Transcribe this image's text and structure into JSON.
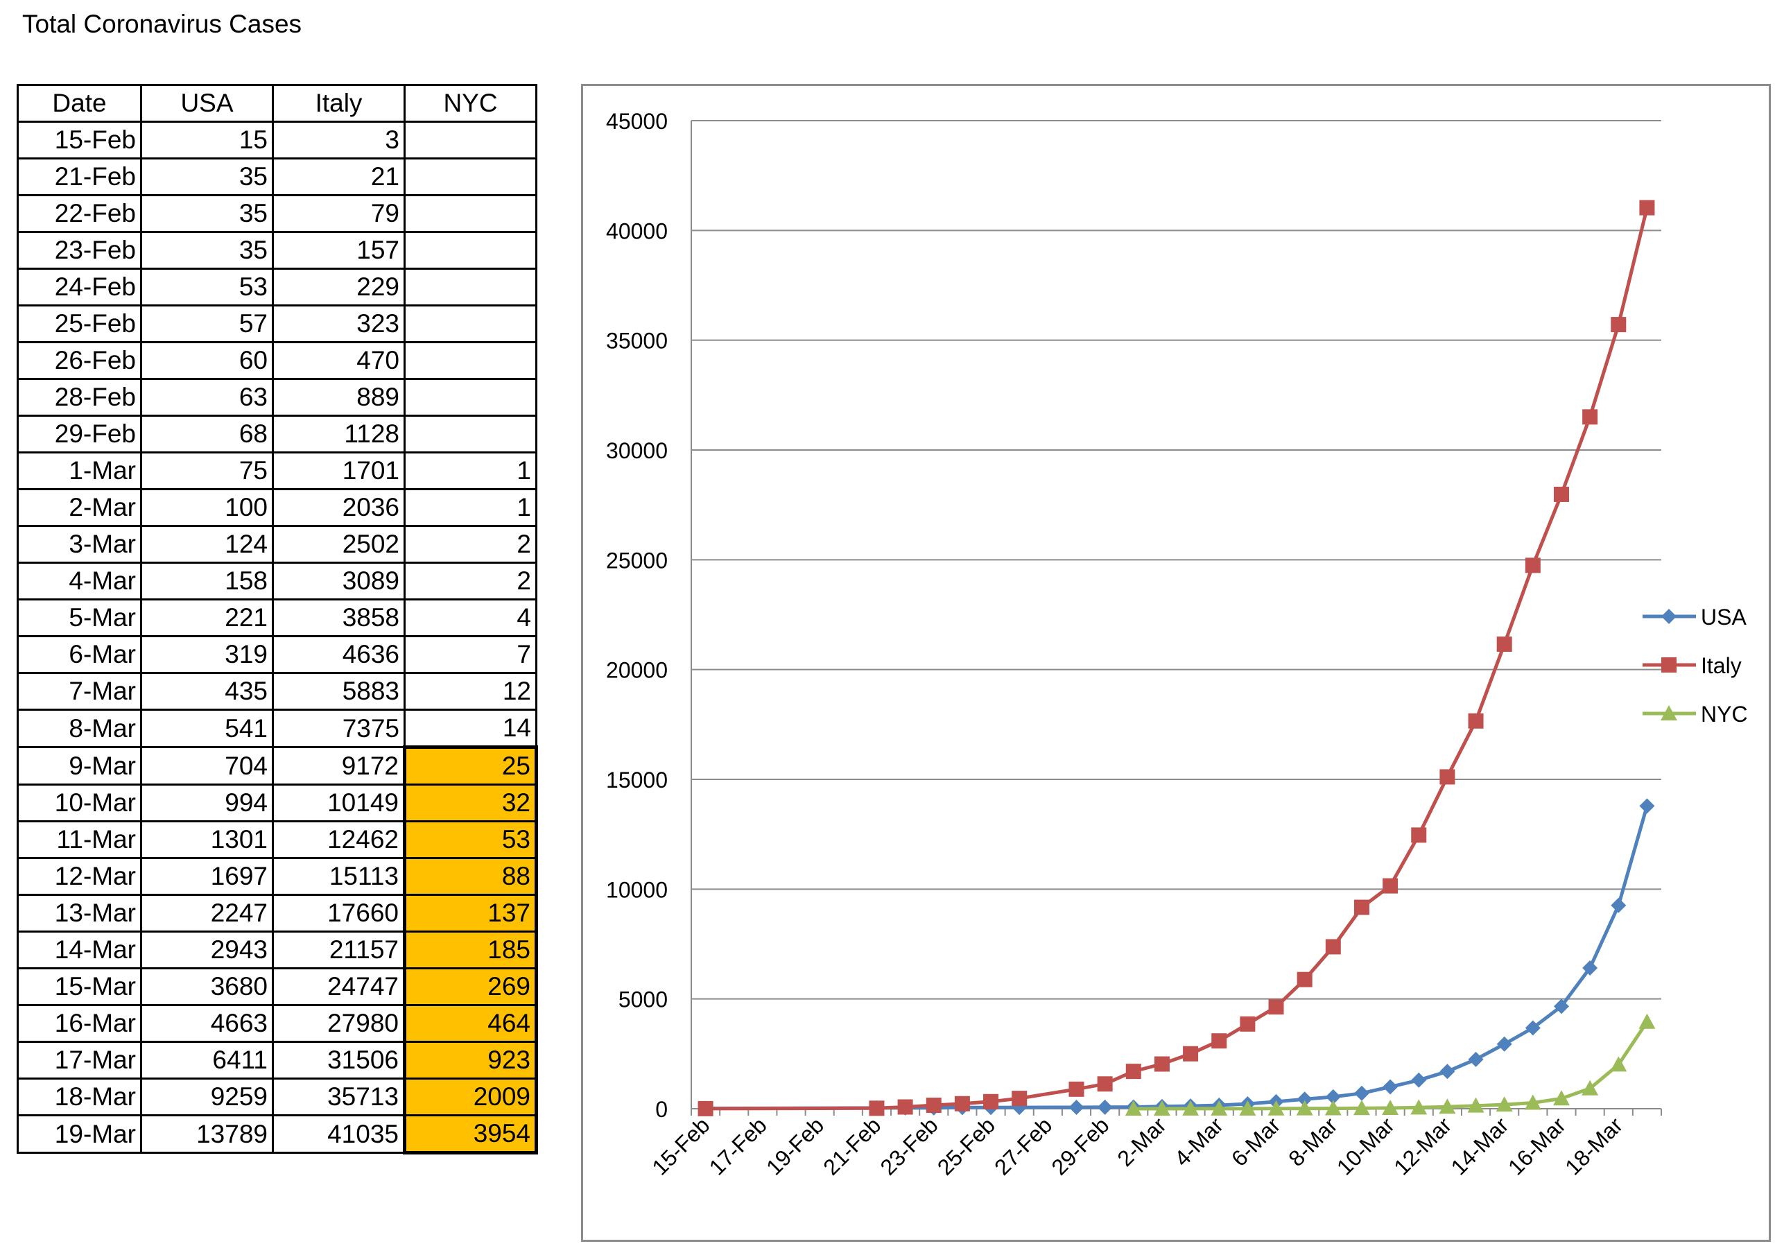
{
  "page": {
    "title": "Total Coronavirus Cases"
  },
  "table": {
    "headers": [
      "Date",
      "USA",
      "Italy",
      "NYC"
    ],
    "rows": [
      [
        "15-Feb",
        "15",
        "3",
        ""
      ],
      [
        "21-Feb",
        "35",
        "21",
        ""
      ],
      [
        "22-Feb",
        "35",
        "79",
        ""
      ],
      [
        "23-Feb",
        "35",
        "157",
        ""
      ],
      [
        "24-Feb",
        "53",
        "229",
        ""
      ],
      [
        "25-Feb",
        "57",
        "323",
        ""
      ],
      [
        "26-Feb",
        "60",
        "470",
        ""
      ],
      [
        "28-Feb",
        "63",
        "889",
        ""
      ],
      [
        "29-Feb",
        "68",
        "1128",
        ""
      ],
      [
        "1-Mar",
        "75",
        "1701",
        "1"
      ],
      [
        "2-Mar",
        "100",
        "2036",
        "1"
      ],
      [
        "3-Mar",
        "124",
        "2502",
        "2"
      ],
      [
        "4-Mar",
        "158",
        "3089",
        "2"
      ],
      [
        "5-Mar",
        "221",
        "3858",
        "4"
      ],
      [
        "6-Mar",
        "319",
        "4636",
        "7"
      ],
      [
        "7-Mar",
        "435",
        "5883",
        "12"
      ],
      [
        "8-Mar",
        "541",
        "7375",
        "14"
      ],
      [
        "9-Mar",
        "704",
        "9172",
        "25"
      ],
      [
        "10-Mar",
        "994",
        "10149",
        "32"
      ],
      [
        "11-Mar",
        "1301",
        "12462",
        "53"
      ],
      [
        "12-Mar",
        "1697",
        "15113",
        "88"
      ],
      [
        "13-Mar",
        "2247",
        "17660",
        "137"
      ],
      [
        "14-Mar",
        "2943",
        "21157",
        "185"
      ],
      [
        "15-Mar",
        "3680",
        "24747",
        "269"
      ],
      [
        "16-Mar",
        "4663",
        "27980",
        "464"
      ],
      [
        "17-Mar",
        "6411",
        "31506",
        "923"
      ],
      [
        "18-Mar",
        "9259",
        "35713",
        "2009"
      ],
      [
        "19-Mar",
        "13789",
        "41035",
        "3954"
      ]
    ],
    "highlight_color": "#ffc000",
    "highlight_nyc_from_date": "9-Mar"
  },
  "chart_data": {
    "type": "line",
    "title": "",
    "xlabel": "",
    "ylabel": "",
    "ylim": [
      0,
      45000
    ],
    "yticks": [
      0,
      5000,
      10000,
      15000,
      20000,
      25000,
      30000,
      35000,
      40000,
      45000
    ],
    "xlim": [
      "15-Feb",
      "20-Mar"
    ],
    "xtick_labels": [
      "15-Feb",
      "17-Feb",
      "19-Feb",
      "21-Feb",
      "23-Feb",
      "25-Feb",
      "27-Feb",
      "29-Feb",
      "2-Mar",
      "4-Mar",
      "6-Mar",
      "8-Mar",
      "10-Mar",
      "12-Mar",
      "14-Mar",
      "16-Mar",
      "18-Mar"
    ],
    "grid": "horizontal",
    "legend": "right",
    "series": [
      {
        "name": "USA",
        "color": "#4f81bd",
        "marker": "diamond",
        "points": [
          [
            "15-Feb",
            15
          ],
          [
            "21-Feb",
            35
          ],
          [
            "22-Feb",
            35
          ],
          [
            "23-Feb",
            35
          ],
          [
            "24-Feb",
            53
          ],
          [
            "25-Feb",
            57
          ],
          [
            "26-Feb",
            60
          ],
          [
            "28-Feb",
            63
          ],
          [
            "29-Feb",
            68
          ],
          [
            "1-Mar",
            75
          ],
          [
            "2-Mar",
            100
          ],
          [
            "3-Mar",
            124
          ],
          [
            "4-Mar",
            158
          ],
          [
            "5-Mar",
            221
          ],
          [
            "6-Mar",
            319
          ],
          [
            "7-Mar",
            435
          ],
          [
            "8-Mar",
            541
          ],
          [
            "9-Mar",
            704
          ],
          [
            "10-Mar",
            994
          ],
          [
            "11-Mar",
            1301
          ],
          [
            "12-Mar",
            1697
          ],
          [
            "13-Mar",
            2247
          ],
          [
            "14-Mar",
            2943
          ],
          [
            "15-Mar",
            3680
          ],
          [
            "16-Mar",
            4663
          ],
          [
            "17-Mar",
            6411
          ],
          [
            "18-Mar",
            9259
          ],
          [
            "19-Mar",
            13789
          ]
        ]
      },
      {
        "name": "Italy",
        "color": "#c0504d",
        "marker": "square",
        "points": [
          [
            "15-Feb",
            3
          ],
          [
            "21-Feb",
            21
          ],
          [
            "22-Feb",
            79
          ],
          [
            "23-Feb",
            157
          ],
          [
            "24-Feb",
            229
          ],
          [
            "25-Feb",
            323
          ],
          [
            "26-Feb",
            470
          ],
          [
            "28-Feb",
            889
          ],
          [
            "29-Feb",
            1128
          ],
          [
            "1-Mar",
            1701
          ],
          [
            "2-Mar",
            2036
          ],
          [
            "3-Mar",
            2502
          ],
          [
            "4-Mar",
            3089
          ],
          [
            "5-Mar",
            3858
          ],
          [
            "6-Mar",
            4636
          ],
          [
            "7-Mar",
            5883
          ],
          [
            "8-Mar",
            7375
          ],
          [
            "9-Mar",
            9172
          ],
          [
            "10-Mar",
            10149
          ],
          [
            "11-Mar",
            12462
          ],
          [
            "12-Mar",
            15113
          ],
          [
            "13-Mar",
            17660
          ],
          [
            "14-Mar",
            21157
          ],
          [
            "15-Mar",
            24747
          ],
          [
            "16-Mar",
            27980
          ],
          [
            "17-Mar",
            31506
          ],
          [
            "18-Mar",
            35713
          ],
          [
            "19-Mar",
            41035
          ]
        ]
      },
      {
        "name": "NYC",
        "color": "#9bbb59",
        "marker": "triangle",
        "points": [
          [
            "1-Mar",
            1
          ],
          [
            "2-Mar",
            1
          ],
          [
            "3-Mar",
            2
          ],
          [
            "4-Mar",
            2
          ],
          [
            "5-Mar",
            4
          ],
          [
            "6-Mar",
            7
          ],
          [
            "7-Mar",
            12
          ],
          [
            "8-Mar",
            14
          ],
          [
            "9-Mar",
            25
          ],
          [
            "10-Mar",
            32
          ],
          [
            "11-Mar",
            53
          ],
          [
            "12-Mar",
            88
          ],
          [
            "13-Mar",
            137
          ],
          [
            "14-Mar",
            185
          ],
          [
            "15-Mar",
            269
          ],
          [
            "16-Mar",
            464
          ],
          [
            "17-Mar",
            923
          ],
          [
            "18-Mar",
            2009
          ],
          [
            "19-Mar",
            3954
          ]
        ]
      }
    ]
  }
}
